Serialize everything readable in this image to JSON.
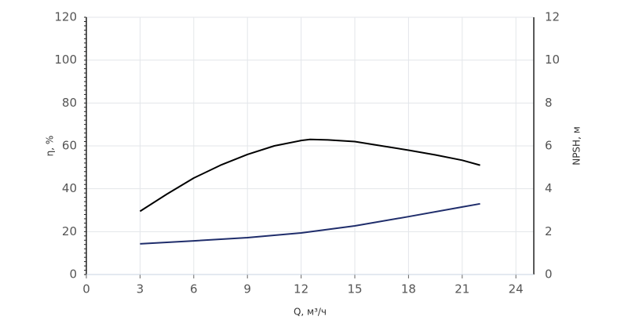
{
  "chart_data": {
    "type": "line",
    "xlabel": "Q, м³/ч",
    "ylabel": "η, %",
    "y2label": "NPSH, м",
    "xlim": [
      0,
      25
    ],
    "xticks": [
      0,
      3,
      6,
      9,
      12,
      15,
      18,
      21,
      24
    ],
    "ylim": [
      0,
      120
    ],
    "yticks": [
      0,
      20,
      40,
      60,
      80,
      100,
      120
    ],
    "y2lim": [
      0,
      12
    ],
    "y2ticks": [
      0,
      2,
      4,
      6,
      8,
      10,
      12
    ],
    "grid": true,
    "series": [
      {
        "color": "#000000",
        "x": [
          3,
          4.5,
          6,
          7.5,
          9,
          10.5,
          12,
          12.5,
          13.5,
          15,
          16.5,
          18,
          19.5,
          21,
          22
        ],
        "values": [
          29.5,
          37.5,
          45,
          51,
          56,
          60,
          62.5,
          63,
          62.8,
          62,
          60,
          58,
          55.8,
          53.3,
          51
        ]
      },
      {
        "color": "#1f2d6b",
        "axis": "y2",
        "x": [
          3,
          6,
          9,
          12,
          15,
          18,
          21,
          22
        ],
        "values": [
          1.43,
          1.57,
          1.72,
          1.94,
          2.27,
          2.7,
          3.15,
          3.3
        ]
      }
    ]
  }
}
